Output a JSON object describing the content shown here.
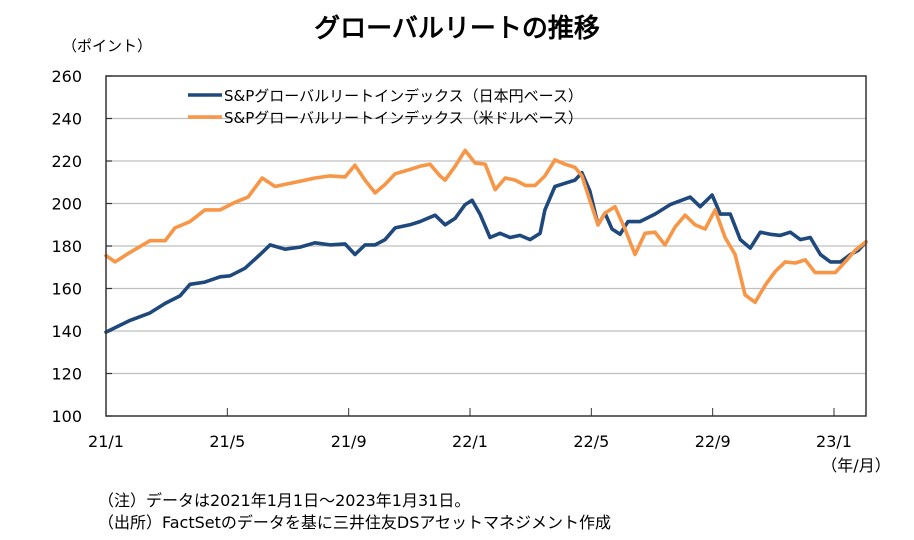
{
  "chart_data": {
    "type": "line",
    "title": "グローバルリートの推移",
    "ylabel": "（ポイント）",
    "xlabel": "（年/月）",
    "ylim": [
      100,
      260
    ],
    "yticks": [
      100,
      120,
      140,
      160,
      180,
      200,
      220,
      240,
      260
    ],
    "xlim_months": [
      0,
      25
    ],
    "xtick_labels": [
      "21/1",
      "21/5",
      "21/9",
      "22/1",
      "22/5",
      "22/9",
      "23/1"
    ],
    "xtick_months": [
      0,
      4,
      8,
      12,
      16,
      20,
      24
    ],
    "grid": "horizontal",
    "legend_position": "top-left",
    "series": [
      {
        "name": "S&Pグローバルリートインデックス（日本円ベース）",
        "color": "#1f497d",
        "x_months": [
          0,
          0.79,
          1.45,
          1.95,
          2.44,
          2.77,
          3.26,
          3.76,
          4.09,
          4.58,
          5.08,
          5.41,
          5.9,
          6.4,
          6.89,
          7.39,
          7.88,
          8.21,
          8.54,
          8.87,
          9.2,
          9.53,
          10.02,
          10.35,
          10.85,
          11.18,
          11.51,
          11.84,
          12.07,
          12.33,
          12.66,
          12.99,
          13.32,
          13.65,
          13.98,
          14.31,
          14.47,
          14.8,
          15.13,
          15.46,
          15.69,
          15.95,
          16.22,
          16.45,
          16.68,
          16.95,
          17.21,
          17.6,
          18.1,
          18.6,
          19.26,
          19.59,
          19.98,
          20.25,
          20.58,
          20.91,
          21.24,
          21.57,
          21.9,
          22.23,
          22.56,
          22.89,
          23.22,
          23.55,
          23.88,
          24.21,
          24.54,
          24.8,
          25.07
        ],
        "values": [
          139.5,
          145,
          148.5,
          153,
          156.5,
          162,
          163,
          165.5,
          166,
          169.5,
          176,
          180.5,
          178.5,
          179.5,
          181.5,
          180.5,
          181,
          176,
          180.5,
          180.5,
          183,
          188.5,
          190,
          191.5,
          194.5,
          190,
          193,
          199.5,
          201.5,
          195,
          184,
          186,
          184,
          185,
          183,
          186,
          197,
          208,
          209.5,
          211,
          214.5,
          206,
          190,
          195.5,
          188,
          185.5,
          191.5,
          191.5,
          195,
          199.5,
          203,
          198.5,
          204,
          195,
          195,
          183,
          179,
          186.5,
          185.5,
          185,
          186.5,
          183,
          184,
          176,
          172.5,
          172.5,
          176,
          178,
          182
        ]
      },
      {
        "name": "S&Pグローバルリートインデックス（米ドルベース）",
        "color": "#f79646",
        "x_months": [
          0,
          0.3,
          0.79,
          1.45,
          1.95,
          2.27,
          2.77,
          3.26,
          3.76,
          4.25,
          4.68,
          5.15,
          5.57,
          5.9,
          6.4,
          6.89,
          7.39,
          7.88,
          8.21,
          8.54,
          8.87,
          9.2,
          9.53,
          10.02,
          10.35,
          10.68,
          11.01,
          11.18,
          11.51,
          11.84,
          12.17,
          12.5,
          12.83,
          13.16,
          13.49,
          13.82,
          14.15,
          14.47,
          14.8,
          15.13,
          15.46,
          15.69,
          15.95,
          16.22,
          16.45,
          16.78,
          17.11,
          17.44,
          17.77,
          18.1,
          18.43,
          18.76,
          19.09,
          19.42,
          19.75,
          20.08,
          20.41,
          20.74,
          21.07,
          21.4,
          21.73,
          22.06,
          22.39,
          22.73,
          23.05,
          23.38,
          23.71,
          24.04,
          24.37,
          24.7,
          25.07
        ],
        "values": [
          175.5,
          172.5,
          177,
          182.5,
          182.5,
          188.5,
          191.5,
          197,
          197,
          200.5,
          203,
          212,
          208,
          209,
          210.5,
          212,
          213,
          212.5,
          218,
          211,
          205,
          209,
          214,
          216,
          217.5,
          218.5,
          213,
          211,
          217.5,
          225,
          219,
          218.5,
          206.5,
          212,
          211,
          208.5,
          208.5,
          213,
          220.5,
          218.5,
          217,
          213,
          201.5,
          190,
          195.5,
          198.5,
          188,
          176,
          186,
          186.5,
          180.5,
          189,
          194.5,
          190,
          188,
          197,
          184,
          176,
          157,
          153.5,
          161.5,
          168,
          172.5,
          172,
          173.5,
          167.5,
          167.5,
          167.5,
          172.5,
          178,
          182
        ]
      }
    ]
  },
  "notes": {
    "note": "（注）データは2021年1月1日～2023年1月31日。",
    "source": "（出所）FactSetのデータを基に三井住友DSアセットマネジメント作成"
  }
}
